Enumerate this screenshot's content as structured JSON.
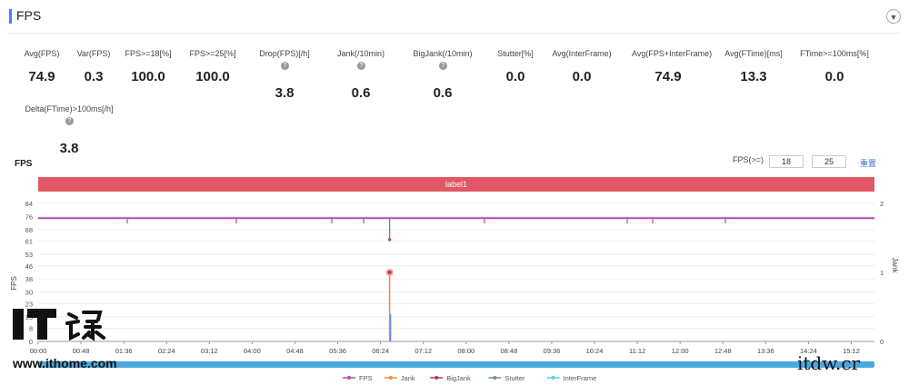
{
  "header": {
    "title": "FPS",
    "collapse_icon": "chevron-down-icon"
  },
  "stats": [
    {
      "label": "Avg(FPS)",
      "value": "74.9",
      "help": false
    },
    {
      "label": "Var(FPS)",
      "value": "0.3",
      "help": false
    },
    {
      "label": "FPS>=18[%]",
      "value": "100.0",
      "help": false
    },
    {
      "label": "FPS>=25[%]",
      "value": "100.0",
      "help": false
    },
    {
      "label": "Drop(FPS)[/h]",
      "value": "3.8",
      "help": true
    },
    {
      "label": "Jank(/10min)",
      "value": "0.6",
      "help": true
    },
    {
      "label": "BigJank(/10min)",
      "value": "0.6",
      "help": true
    },
    {
      "label": "Stutter[%]",
      "value": "0.0",
      "help": false
    },
    {
      "label": "Avg(InterFrame)",
      "value": "0.0",
      "help": false
    },
    {
      "label": "Avg(FPS+InterFrame)",
      "value": "74.9",
      "help": false
    },
    {
      "label": "Avg(FTime)[ms]",
      "value": "13.3",
      "help": false
    },
    {
      "label": "FTime>=100ms[%]",
      "value": "0.0",
      "help": false
    },
    {
      "label": "Delta(FTime)>100ms[/h]",
      "value": "3.8",
      "help": true
    }
  ],
  "chart_section": {
    "title": "FPS",
    "filter_label": "FPS(>=)",
    "filter_value_1": "18",
    "filter_value_2": "25",
    "reset_label": "重置",
    "band_label": "label1"
  },
  "chart_data": {
    "type": "line",
    "x": [
      "00:00",
      "00:48",
      "01:36",
      "02:24",
      "03:12",
      "04:00",
      "04:48",
      "05:36",
      "06:24",
      "07:12",
      "08:00",
      "08:48",
      "09:36",
      "10:24",
      "11:12",
      "12:00",
      "12:48",
      "13:36",
      "14:24",
      "15:12"
    ],
    "xlabel": "",
    "ylabel": "FPS",
    "y_ticks": [
      0,
      8,
      15,
      23,
      30,
      38,
      46,
      53,
      61,
      68,
      76,
      84
    ],
    "ylim": [
      0,
      84
    ],
    "y2label": "Jank",
    "y2_ticks": [
      0,
      1,
      2
    ],
    "y2lim": [
      0,
      2
    ],
    "baseline_fps": 75,
    "fps_drop": {
      "time": "06:24",
      "value": 62
    },
    "jank_event": {
      "time": "06:24",
      "value": 1
    },
    "legend": [
      {
        "name": "FPS",
        "color": "#b04fb5"
      },
      {
        "name": "Jank",
        "color": "#f08a3a"
      },
      {
        "name": "BigJank",
        "color": "#c0334a"
      },
      {
        "name": "Stutter",
        "color": "#6a9a7a"
      },
      {
        "name": "InterFrame",
        "color": "#5ccfd6"
      }
    ],
    "grid": true
  },
  "logo": {
    "text": "www.ithome.com"
  },
  "watermark": "itdw.cr"
}
